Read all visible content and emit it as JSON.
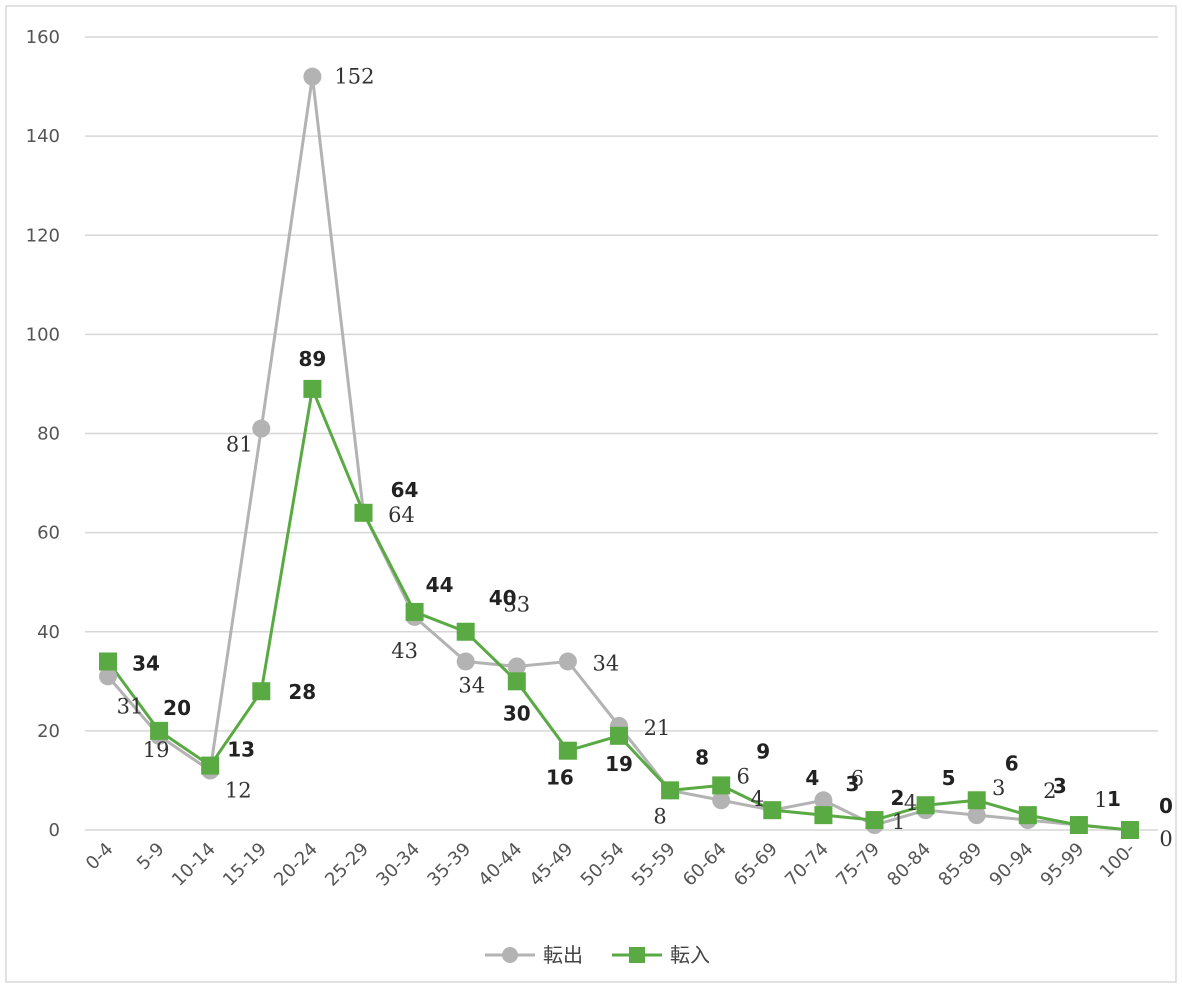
{
  "chart_data": {
    "type": "line",
    "categories": [
      "0-4",
      "5-9",
      "10-14",
      "15-19",
      "20-24",
      "25-29",
      "30-34",
      "35-39",
      "40-44",
      "45-49",
      "50-54",
      "55-59",
      "60-64",
      "65-69",
      "70-74",
      "75-79",
      "80-84",
      "85-89",
      "90-94",
      "95-99",
      "100-"
    ],
    "ylim": [
      0,
      160
    ],
    "yticks": [
      0,
      20,
      40,
      60,
      80,
      100,
      120,
      140,
      160
    ],
    "grid": true,
    "legend_position": "bottom",
    "series": [
      {
        "name": "転出",
        "color": "#b3b3b3",
        "marker": "circle",
        "values": [
          31,
          19,
          12,
          81,
          152,
          64,
          43,
          34,
          33,
          34,
          21,
          8,
          6,
          4,
          6,
          1,
          4,
          3,
          2,
          1,
          0
        ],
        "labels": [
          "31",
          "19",
          "12",
          "81",
          "152",
          "64",
          "43",
          "34",
          "33",
          "34",
          "21",
          "8",
          "6",
          "4",
          "6",
          "1",
          "4",
          "3",
          "2",
          "1",
          "0"
        ]
      },
      {
        "name": "転入",
        "color": "#5aaa44",
        "marker": "square",
        "values": [
          34,
          20,
          13,
          28,
          89,
          64,
          44,
          40,
          30,
          16,
          19,
          8,
          9,
          4,
          3,
          2,
          5,
          6,
          3,
          1,
          0
        ],
        "labels": [
          "34",
          "20",
          "13",
          "28",
          "89",
          "64",
          "44",
          "40",
          "30",
          "16",
          "19",
          "8",
          "9",
          "4",
          "3",
          "2",
          "5",
          "6",
          "3",
          "1",
          "0"
        ]
      }
    ]
  }
}
